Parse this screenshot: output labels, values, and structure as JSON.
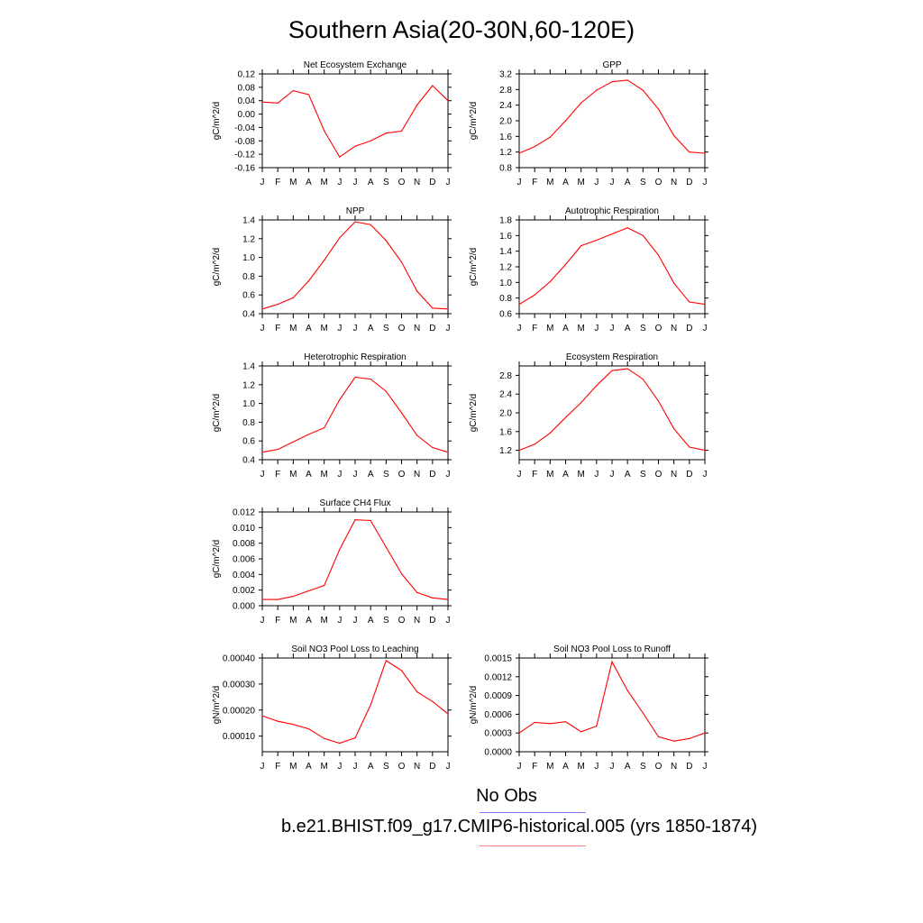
{
  "page_title": "Southern Asia(20-30N,60-120E)",
  "legend": {
    "obs_label": "No Obs",
    "obs_color": "#7f7fff",
    "case_label": "b.e21.BHIST.f09_g17.CMIP6-historical.005 (yrs 1850-1874)",
    "case_color": "#ff0000"
  },
  "chart_data": [
    {
      "type": "line",
      "title": "Net Ecosystem Exchange",
      "ylabel": "gC/m^2/d",
      "categories": [
        "J",
        "F",
        "M",
        "A",
        "M",
        "J",
        "J",
        "A",
        "S",
        "O",
        "N",
        "D",
        "J"
      ],
      "ylim": [
        -0.16,
        0.12
      ],
      "yticks": [
        "0.12",
        "0.08",
        "0.04",
        "0.00",
        "-0.04",
        "-0.08",
        "-0.12",
        "-0.16"
      ],
      "values": [
        0.036,
        0.033,
        0.07,
        0.058,
        -0.05,
        -0.128,
        -0.096,
        -0.08,
        -0.057,
        -0.051,
        0.027,
        0.085,
        0.04
      ]
    },
    {
      "type": "line",
      "title": "GPP",
      "ylabel": "gC/m^2/d",
      "categories": [
        "J",
        "F",
        "M",
        "A",
        "M",
        "J",
        "J",
        "A",
        "S",
        "O",
        "N",
        "D",
        "J"
      ],
      "ylim": [
        0.8,
        3.2
      ],
      "yticks": [
        "3.2",
        "2.8",
        "2.4",
        "2.0",
        "1.6",
        "1.2",
        "0.8"
      ],
      "values": [
        1.17,
        1.34,
        1.58,
        2.0,
        2.46,
        2.78,
        3.0,
        3.04,
        2.78,
        2.3,
        1.62,
        1.2,
        1.17
      ]
    },
    {
      "type": "line",
      "title": "NPP",
      "ylabel": "gC/m^2/d",
      "categories": [
        "J",
        "F",
        "M",
        "A",
        "M",
        "J",
        "J",
        "A",
        "S",
        "O",
        "N",
        "D",
        "J"
      ],
      "ylim": [
        0.4,
        1.4
      ],
      "yticks": [
        "1.4",
        "1.2",
        "1.0",
        "0.8",
        "0.6",
        "0.4"
      ],
      "values": [
        0.45,
        0.5,
        0.57,
        0.75,
        0.97,
        1.21,
        1.38,
        1.35,
        1.18,
        0.95,
        0.64,
        0.46,
        0.45
      ]
    },
    {
      "type": "line",
      "title": "Autotrophic Respiration",
      "ylabel": "gC/m^2/d",
      "categories": [
        "J",
        "F",
        "M",
        "A",
        "M",
        "J",
        "J",
        "A",
        "S",
        "O",
        "N",
        "D",
        "J"
      ],
      "ylim": [
        0.6,
        1.8
      ],
      "yticks": [
        "1.8",
        "1.6",
        "1.4",
        "1.2",
        "1.0",
        "0.8",
        "0.6"
      ],
      "values": [
        0.72,
        0.84,
        1.01,
        1.23,
        1.47,
        1.54,
        1.62,
        1.7,
        1.6,
        1.35,
        0.99,
        0.75,
        0.72
      ]
    },
    {
      "type": "line",
      "title": "Heterotrophic Respiration",
      "ylabel": "gC/m^2/d",
      "categories": [
        "J",
        "F",
        "M",
        "A",
        "M",
        "J",
        "J",
        "A",
        "S",
        "O",
        "N",
        "D",
        "J"
      ],
      "ylim": [
        0.4,
        1.4
      ],
      "yticks": [
        "1.4",
        "1.2",
        "1.0",
        "0.8",
        "0.6",
        "0.4"
      ],
      "values": [
        0.48,
        0.51,
        0.59,
        0.67,
        0.74,
        1.04,
        1.28,
        1.26,
        1.13,
        0.9,
        0.66,
        0.53,
        0.48
      ]
    },
    {
      "type": "line",
      "title": "Ecosystem Respiration",
      "ylabel": "gC/m^2/d",
      "categories": [
        "J",
        "F",
        "M",
        "A",
        "M",
        "J",
        "J",
        "A",
        "S",
        "O",
        "N",
        "D",
        "J"
      ],
      "ylim": [
        1.0,
        3.0
      ],
      "yticks": [
        "2.8",
        "2.4",
        "2.0",
        "1.6",
        "1.2"
      ],
      "values": [
        1.2,
        1.33,
        1.57,
        1.9,
        2.22,
        2.58,
        2.9,
        2.94,
        2.72,
        2.25,
        1.66,
        1.27,
        1.2
      ]
    },
    {
      "type": "line",
      "title": "Surface CH4 Flux",
      "ylabel": "gC/m^2/d",
      "categories": [
        "J",
        "F",
        "M",
        "A",
        "M",
        "J",
        "J",
        "A",
        "S",
        "O",
        "N",
        "D",
        "J"
      ],
      "ylim": [
        0.0,
        0.012
      ],
      "yticks": [
        "0.012",
        "0.010",
        "0.008",
        "0.006",
        "0.004",
        "0.002",
        "0.000"
      ],
      "values": [
        0.0008,
        0.0008,
        0.0012,
        0.0019,
        0.0026,
        0.0072,
        0.011,
        0.0109,
        0.0075,
        0.0041,
        0.0017,
        0.001,
        0.0008
      ]
    },
    {
      "type": "line",
      "title": "Soil NO3 Pool Loss to Leaching",
      "ylabel": "gN/m^2/d",
      "categories": [
        "J",
        "F",
        "M",
        "A",
        "M",
        "J",
        "J",
        "A",
        "S",
        "O",
        "N",
        "D",
        "J"
      ],
      "ylim": [
        4e-05,
        0.0004
      ],
      "yticks": [
        "0.00040",
        "0.00030",
        "0.00020",
        "0.00010"
      ],
      "values": [
        0.000178,
        0.000157,
        0.000145,
        0.000128,
        9.1e-05,
        7.3e-05,
        9.3e-05,
        0.00022,
        0.00039,
        0.000352,
        0.00027,
        0.000233,
        0.000185
      ]
    },
    {
      "type": "line",
      "title": "Soil NO3 Pool Loss to Runoff",
      "ylabel": "gN/m^2/d",
      "categories": [
        "J",
        "F",
        "M",
        "A",
        "M",
        "J",
        "J",
        "A",
        "S",
        "O",
        "N",
        "D",
        "J"
      ],
      "ylim": [
        0.0,
        0.0015
      ],
      "yticks": [
        "0.0015",
        "0.0012",
        "0.0009",
        "0.0006",
        "0.0003",
        "0.0000"
      ],
      "values": [
        0.0003,
        0.00047,
        0.00045,
        0.00048,
        0.00032,
        0.00041,
        0.00144,
        0.00098,
        0.00062,
        0.00024,
        0.00017,
        0.00021,
        0.0003
      ]
    }
  ]
}
